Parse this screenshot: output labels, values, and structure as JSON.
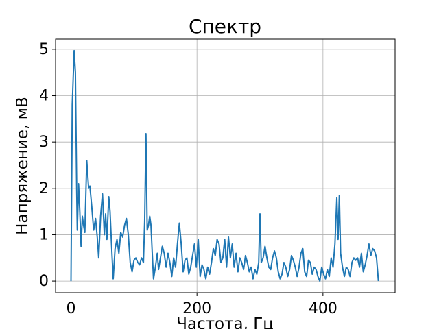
{
  "chart_data": {
    "type": "line",
    "title": "Спектр",
    "x_label": "Частота, Гц",
    "y_label": "Напряжение, мВ",
    "x": [
      0,
      2,
      5,
      7,
      9,
      10,
      12,
      14,
      16,
      18,
      20,
      22,
      25,
      28,
      30,
      33,
      36,
      39,
      42,
      44,
      47,
      50,
      53,
      55,
      57,
      60,
      62,
      65,
      67,
      70,
      73,
      76,
      79,
      82,
      85,
      88,
      91,
      94,
      97,
      100,
      103,
      106,
      109,
      112,
      115,
      117,
      119,
      121,
      123,
      125,
      127,
      129,
      131,
      134,
      137,
      139,
      142,
      145,
      148,
      151,
      154,
      157,
      160,
      163,
      166,
      169,
      172,
      175,
      178,
      181,
      184,
      187,
      190,
      193,
      196,
      199,
      202,
      205,
      208,
      211,
      214,
      217,
      220,
      223,
      226,
      229,
      232,
      235,
      238,
      241,
      244,
      247,
      250,
      253,
      256,
      259,
      262,
      265,
      268,
      271,
      274,
      277,
      280,
      283,
      286,
      289,
      292,
      295,
      298,
      300,
      302,
      305,
      308,
      311,
      314,
      317,
      320,
      323,
      326,
      329,
      332,
      335,
      338,
      341,
      344,
      347,
      350,
      353,
      356,
      359,
      362,
      365,
      368,
      371,
      374,
      377,
      380,
      383,
      386,
      389,
      392,
      395,
      398,
      401,
      404,
      407,
      410,
      413,
      416,
      419,
      422,
      424,
      426,
      428,
      431,
      434,
      437,
      440,
      443,
      446,
      449,
      452,
      455,
      458,
      461,
      464,
      467,
      470,
      473,
      476,
      479,
      482,
      485,
      488
    ],
    "values": [
      0,
      3.8,
      4.97,
      4.5,
      2.0,
      1.1,
      2.1,
      1.5,
      0.75,
      1.4,
      1.2,
      1.05,
      2.6,
      2.0,
      2.05,
      1.6,
      1.1,
      1.35,
      0.9,
      0.5,
      1.4,
      1.88,
      1.0,
      1.45,
      0.9,
      1.82,
      1.5,
      0.6,
      0.05,
      0.7,
      0.9,
      0.6,
      1.05,
      0.95,
      1.2,
      1.35,
      1.0,
      0.4,
      0.2,
      0.45,
      0.5,
      0.4,
      0.35,
      0.5,
      0.4,
      1.3,
      3.18,
      1.1,
      1.2,
      1.4,
      1.2,
      0.6,
      0.05,
      0.3,
      0.6,
      0.25,
      0.5,
      0.75,
      0.6,
      0.3,
      0.6,
      0.4,
      0.1,
      0.5,
      0.3,
      0.8,
      1.25,
      0.8,
      0.2,
      0.45,
      0.5,
      0.15,
      0.3,
      0.55,
      0.8,
      0.3,
      0.9,
      0.1,
      0.35,
      0.25,
      0.05,
      0.3,
      0.15,
      0.4,
      0.7,
      0.55,
      0.9,
      0.8,
      0.4,
      0.5,
      0.9,
      0.3,
      0.95,
      0.5,
      0.8,
      0.3,
      0.6,
      0.2,
      0.5,
      0.4,
      0.25,
      0.55,
      0.4,
      0.2,
      0.3,
      0.05,
      0.25,
      0.15,
      0.4,
      1.45,
      0.4,
      0.5,
      0.75,
      0.5,
      0.3,
      0.25,
      0.5,
      0.65,
      0.5,
      0.2,
      0.05,
      0.15,
      0.4,
      0.3,
      0.1,
      0.25,
      0.55,
      0.45,
      0.3,
      0.1,
      0.3,
      0.6,
      0.7,
      0.2,
      0.1,
      0.45,
      0.4,
      0.15,
      0.3,
      0.25,
      0.1,
      0,
      0.3,
      0.15,
      0.05,
      0.25,
      0.1,
      0.5,
      0.3,
      0.8,
      1.8,
      0.9,
      1.85,
      0.6,
      0.3,
      0.1,
      0.3,
      0.25,
      0.1,
      0.4,
      0.5,
      0.45,
      0.5,
      0.3,
      0.6,
      0.2,
      0.35,
      0.55,
      0.8,
      0.55,
      0.7,
      0.65,
      0.5,
      0
    ],
    "color": "#1f77b4",
    "xlim": [
      -24.5,
      514.5
    ],
    "ylim": [
      -0.25,
      5.22
    ],
    "xticks": [
      0,
      200,
      400
    ],
    "yticks": [
      0,
      1,
      2,
      3,
      4,
      5
    ],
    "grid": true
  }
}
